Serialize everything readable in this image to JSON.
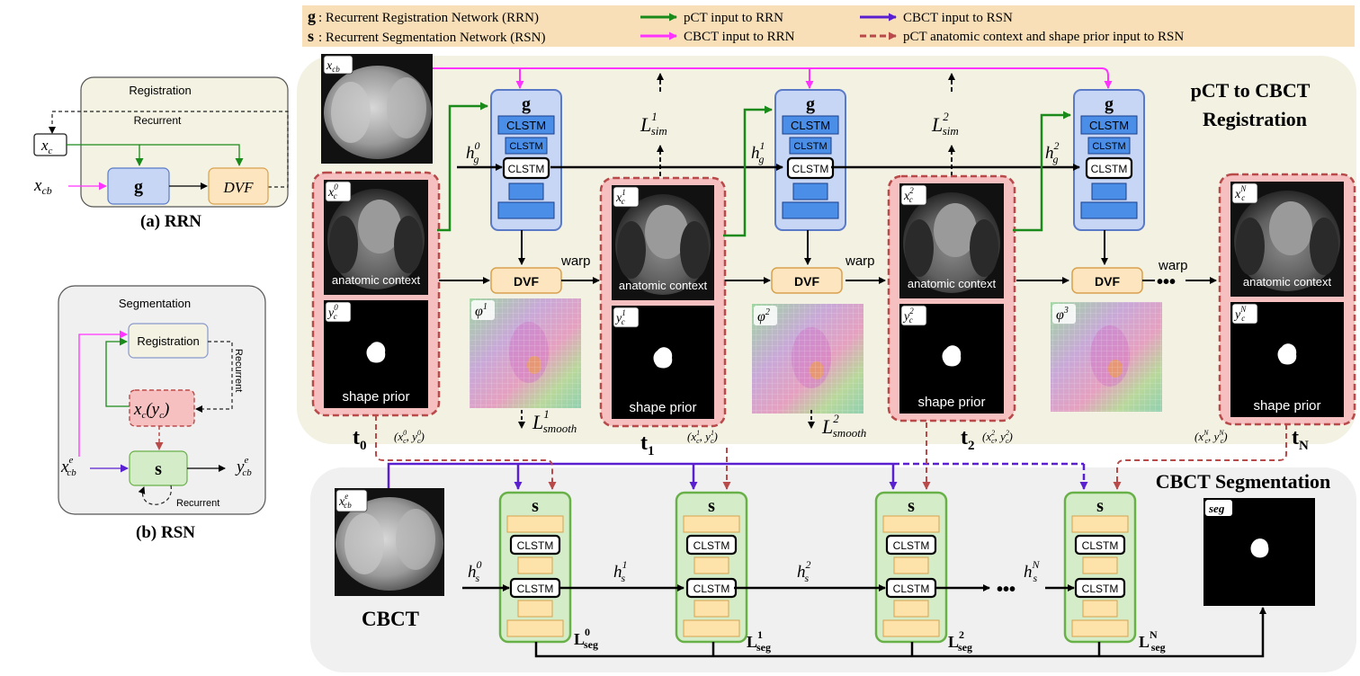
{
  "legend": {
    "g_key": "g",
    "g_desc": ": Recurrent Registration Network (RRN)",
    "s_key": "s",
    "s_desc": ": Recurrent Segmentation Network (RSN)",
    "pct_to_rrn": "pCT input to RRN",
    "cbct_to_rrn": "CBCT input to RRN",
    "cbct_to_rsn": "CBCT input to RSN",
    "pct_context_to_rsn": "pCT anatomic context and shape prior input to RSN"
  },
  "rrn_panel": {
    "title": "Registration",
    "recurrent": "Recurrent",
    "xc": "x",
    "xc_sub": "c",
    "xcb": "x",
    "xcb_sub": "cb",
    "g": "g",
    "dvf": "DVF",
    "caption": "(a) RRN"
  },
  "rsn_panel": {
    "title": "Segmentation",
    "registration": "Registration",
    "recurrent_vertical": "Recurrent",
    "xc_yc": "x",
    "xc_yc_rest": "(y",
    "s": "s",
    "recurrent": "Recurrent",
    "input": "x",
    "input_sup": "e",
    "input_sub": "cb",
    "output": "y",
    "output_sup": "e",
    "output_sub": "cb",
    "caption": "(b) RSN"
  },
  "registration_section": {
    "title_line1": "pCT to CBCT",
    "title_line2": "Registration",
    "xcb_label": "x",
    "xcb_sub": "cb",
    "g_label": "g",
    "clstm": "CLSTM",
    "dvf": "DVF",
    "warp": "warp",
    "anatomic_context": "anatomic context",
    "shape_prior": "shape prior",
    "dots": "•••",
    "frames": [
      {
        "xc_sup": "0",
        "yc_sup": "0",
        "t": "t",
        "t_sub": "0",
        "pair_sup": "0"
      },
      {
        "xc_sup": "1",
        "yc_sup": "1",
        "t": "t",
        "t_sub": "1",
        "pair_sup": "1"
      },
      {
        "xc_sup": "2",
        "yc_sup": "2",
        "t": "t",
        "t_sub": "2",
        "pair_sup": "2"
      },
      {
        "xc_sup": "N",
        "yc_sup": "N",
        "t": "t",
        "t_sub": "N",
        "pair_sup": "N"
      }
    ],
    "hidden": [
      {
        "h": "h",
        "sub": "g",
        "sup": "0"
      },
      {
        "h": "h",
        "sub": "g",
        "sup": "1"
      },
      {
        "h": "h",
        "sub": "g",
        "sup": "2"
      }
    ],
    "sim_losses": [
      {
        "L": "L",
        "sup": "1",
        "sub": "sim"
      },
      {
        "L": "L",
        "sup": "2",
        "sub": "sim"
      }
    ],
    "smooth_losses": [
      {
        "L": "L",
        "sup": "1",
        "sub": "smooth"
      },
      {
        "L": "L",
        "sup": "2",
        "sub": "smooth"
      }
    ],
    "phi": [
      {
        "phi": "φ",
        "sup": "1"
      },
      {
        "phi": "φ",
        "sup": "2"
      },
      {
        "phi": "φ",
        "sup": "3"
      }
    ]
  },
  "segmentation_section": {
    "title": "CBCT Segmentation",
    "cbct_label": "CBCT",
    "input_x": "x",
    "input_sup": "e",
    "input_sub": "cb",
    "s_label": "s",
    "clstm": "CLSTM",
    "seg": "seg",
    "dots": "•••",
    "hidden": [
      {
        "h": "h",
        "sub": "s",
        "sup": "0"
      },
      {
        "h": "h",
        "sub": "s",
        "sup": "1"
      },
      {
        "h": "h",
        "sub": "s",
        "sup": "2"
      },
      {
        "h": "h",
        "sub": "s",
        "sup": "N"
      }
    ],
    "seg_losses": [
      {
        "L": "L",
        "sub": "seg",
        "sup": "0"
      },
      {
        "L": "L",
        "sub": "seg",
        "sup": "1"
      },
      {
        "L": "L",
        "sub": "seg",
        "sup": "2"
      },
      {
        "L": "L",
        "sub": "seg",
        "sup": "N"
      }
    ]
  },
  "colors": {
    "green_arrow": "#1a8a1a",
    "magenta_arrow": "#ff33ff",
    "purple_arrow": "#5a20d0",
    "dashed_red_arrow": "#b84a4a",
    "legend_bg": "#f8dfb8",
    "registration_bg": "#f2f1e2",
    "segmentation_bg": "#f0f0f0",
    "g_block_fill": "#c7d6f5",
    "g_block_stroke": "#5a7ac8",
    "s_block_fill": "#d4edc8",
    "s_block_stroke": "#68b048",
    "frame_fill": "#f6c0c0",
    "frame_stroke": "#b84a4a",
    "dvf_fill": "#fde5bf",
    "clstm_blue": "#4a8ee8",
    "orange_block": "#fde2aa"
  }
}
